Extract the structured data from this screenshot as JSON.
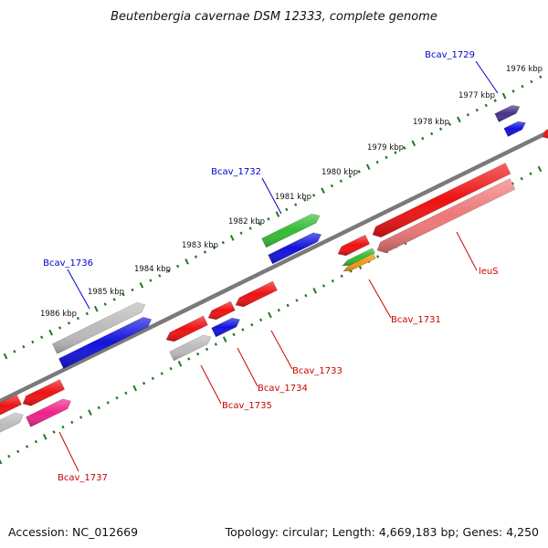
{
  "title": "Beutenbergia cavernae DSM 12333, complete genome",
  "footer": {
    "accession": "Accession: NC_012669",
    "summary": "Topology: circular; Length: 4,669,183 bp; Genes: 4,250"
  },
  "colors": {
    "backbone": "#7a7a7a",
    "tick": "#1e7a1e",
    "gene_red": "#ee1111",
    "gene_blue": "#1111dd",
    "gene_gray": "#bbbbbb",
    "gene_green": "#33bb33",
    "gene_pink": "#ee7777",
    "gene_magenta": "#ee2288",
    "gene_navy": "#443388",
    "gene_orange": "#ee9911",
    "label_red": "#cc0000",
    "label_blue": "#0000cc"
  },
  "scale_labels": [
    {
      "text": "1976 kbp",
      "anchor": "start"
    },
    {
      "text": "1977 kbp",
      "anchor": "end"
    },
    {
      "text": "1978 kbp",
      "anchor": "end"
    },
    {
      "text": "1979 kbp",
      "anchor": "end"
    },
    {
      "text": "1980 kbp",
      "anchor": "end"
    },
    {
      "text": "1981 kbp",
      "anchor": "end"
    },
    {
      "text": "1982 kbp",
      "anchor": "end"
    },
    {
      "text": "1983 kbp",
      "anchor": "end"
    },
    {
      "text": "1984 kbp",
      "anchor": "end"
    },
    {
      "text": "1985 kbp",
      "anchor": "end"
    },
    {
      "text": "1986 kbp",
      "anchor": "end"
    }
  ],
  "gene_labels": [
    {
      "text": "Bcav_1729",
      "color": "label_blue"
    },
    {
      "text": "Bcav_1732",
      "color": "label_blue"
    },
    {
      "text": "Bcav_1736",
      "color": "label_blue"
    },
    {
      "text": "leuS",
      "color": "label_red"
    },
    {
      "text": "Bcav_1731",
      "color": "label_red"
    },
    {
      "text": "Bcav_1733",
      "color": "label_red"
    },
    {
      "text": "Bcav_1734",
      "color": "label_red"
    },
    {
      "text": "Bcav_1735",
      "color": "label_red"
    },
    {
      "text": "Bcav_1737",
      "color": "label_red"
    }
  ]
}
